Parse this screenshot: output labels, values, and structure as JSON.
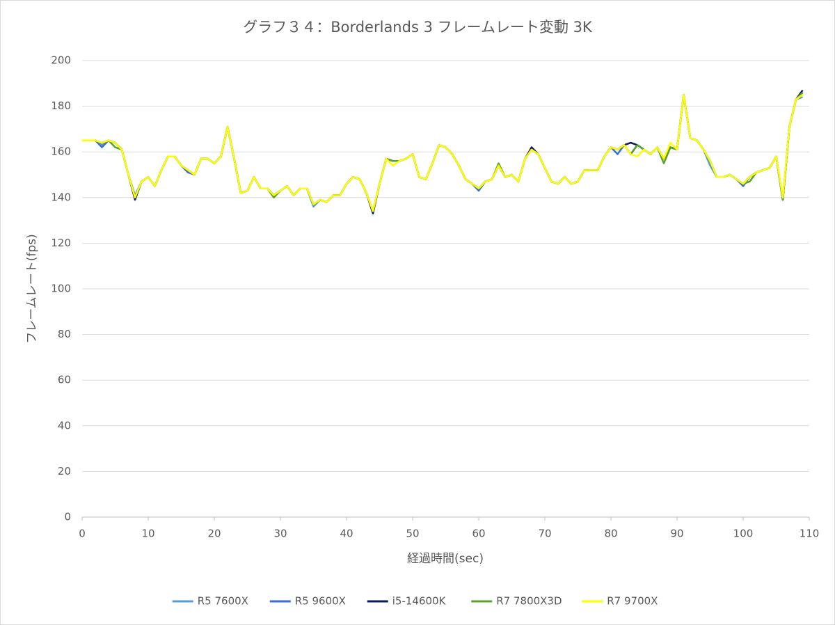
{
  "chart_data": {
    "type": "line",
    "title": "グラフ３４：Borderlands 3 フレームレート変動 3K",
    "x_label": "経過時間(sec)",
    "y_label": "フレームレート(fps)",
    "x": [
      0,
      1,
      2,
      3,
      4,
      5,
      6,
      7,
      8,
      9,
      10,
      11,
      12,
      13,
      14,
      15,
      16,
      17,
      18,
      19,
      20,
      21,
      22,
      23,
      24,
      25,
      26,
      27,
      28,
      29,
      30,
      31,
      32,
      33,
      34,
      35,
      36,
      37,
      38,
      39,
      40,
      41,
      42,
      43,
      44,
      45,
      46,
      47,
      48,
      49,
      50,
      51,
      52,
      53,
      54,
      55,
      56,
      57,
      58,
      59,
      60,
      61,
      62,
      63,
      64,
      65,
      66,
      67,
      68,
      69,
      70,
      71,
      72,
      73,
      74,
      75,
      76,
      77,
      78,
      79,
      80,
      81,
      82,
      83,
      84,
      85,
      86,
      87,
      88,
      89,
      90,
      91,
      92,
      93,
      94,
      95,
      96,
      97,
      98,
      99,
      100,
      101,
      102,
      103,
      104,
      105,
      106,
      107,
      108,
      109
    ],
    "xlim": [
      0,
      110
    ],
    "xticks": [
      0,
      10,
      20,
      30,
      40,
      50,
      60,
      70,
      80,
      90,
      100,
      110
    ],
    "ylim": [
      0,
      200
    ],
    "yticks": [
      0,
      20,
      40,
      60,
      80,
      100,
      120,
      140,
      160,
      180,
      200
    ],
    "grid": true,
    "legend": "bottom",
    "series": [
      {
        "name": "R5 7600X",
        "color": "#5b9bd5",
        "values": [
          165,
          165,
          165,
          163,
          165,
          164,
          161,
          150,
          141,
          147,
          149,
          145,
          152,
          158,
          158,
          154,
          152,
          150,
          157,
          157,
          155,
          158,
          171,
          157,
          142,
          143,
          149,
          144,
          144,
          141,
          143,
          145,
          141,
          144,
          144,
          136,
          139,
          138,
          141,
          141,
          146,
          149,
          148,
          142,
          134,
          146,
          157,
          156,
          156,
          157,
          159,
          149,
          148,
          155,
          163,
          162,
          159,
          154,
          148,
          146,
          144,
          147,
          148,
          154,
          149,
          150,
          147,
          157,
          161,
          159,
          153,
          147,
          146,
          149,
          146,
          147,
          152,
          152,
          152,
          158,
          162,
          161,
          163,
          159,
          163,
          161,
          159,
          162,
          157,
          162,
          161,
          185,
          166,
          165,
          161,
          154,
          149,
          149,
          150,
          148,
          146,
          149,
          151,
          152,
          153,
          158,
          139,
          171,
          183,
          184
        ]
      },
      {
        "name": "R5 9600X",
        "color": "#3a6fd0",
        "values": [
          165,
          165,
          165,
          162,
          165,
          164,
          161,
          150,
          140,
          147,
          149,
          145,
          152,
          158,
          158,
          154,
          151,
          150,
          157,
          157,
          155,
          158,
          171,
          157,
          142,
          143,
          149,
          144,
          144,
          141,
          143,
          145,
          141,
          144,
          144,
          137,
          139,
          138,
          141,
          141,
          146,
          149,
          148,
          142,
          134,
          146,
          157,
          156,
          156,
          157,
          159,
          149,
          148,
          155,
          163,
          162,
          159,
          154,
          148,
          146,
          143,
          147,
          148,
          154,
          149,
          150,
          147,
          157,
          161,
          159,
          153,
          147,
          146,
          149,
          146,
          147,
          152,
          152,
          152,
          158,
          162,
          159,
          163,
          159,
          163,
          161,
          159,
          162,
          157,
          162,
          161,
          185,
          166,
          165,
          161,
          156,
          149,
          149,
          150,
          148,
          145,
          149,
          151,
          152,
          153,
          158,
          139,
          171,
          183,
          186
        ]
      },
      {
        "name": "i5-14600K",
        "color": "#0a1a5c",
        "values": [
          165,
          165,
          165,
          164,
          165,
          164,
          161,
          150,
          139,
          147,
          149,
          145,
          152,
          158,
          158,
          154,
          152,
          150,
          157,
          157,
          155,
          158,
          171,
          157,
          142,
          143,
          149,
          144,
          144,
          141,
          143,
          145,
          141,
          144,
          144,
          137,
          139,
          138,
          141,
          141,
          146,
          149,
          148,
          142,
          133,
          146,
          157,
          156,
          156,
          157,
          159,
          149,
          148,
          155,
          163,
          162,
          159,
          154,
          148,
          146,
          144,
          147,
          148,
          154,
          149,
          150,
          147,
          157,
          162,
          159,
          153,
          147,
          146,
          149,
          146,
          147,
          152,
          152,
          152,
          158,
          162,
          161,
          163,
          164,
          163,
          161,
          159,
          162,
          157,
          162,
          161,
          185,
          166,
          165,
          161,
          156,
          149,
          149,
          150,
          148,
          146,
          149,
          151,
          152,
          153,
          158,
          139,
          171,
          183,
          187
        ]
      },
      {
        "name": "R7 7800X3D",
        "color": "#5aa02c",
        "values": [
          165,
          165,
          165,
          164,
          165,
          162,
          161,
          150,
          140,
          147,
          149,
          145,
          152,
          158,
          158,
          154,
          152,
          150,
          157,
          157,
          155,
          158,
          171,
          157,
          142,
          143,
          149,
          144,
          144,
          140,
          143,
          145,
          141,
          144,
          144,
          137,
          139,
          138,
          141,
          141,
          146,
          149,
          148,
          142,
          134,
          146,
          157,
          156,
          156,
          157,
          159,
          149,
          148,
          155,
          163,
          162,
          159,
          154,
          148,
          146,
          144,
          147,
          148,
          155,
          149,
          150,
          147,
          157,
          161,
          159,
          153,
          147,
          146,
          149,
          146,
          147,
          152,
          152,
          152,
          158,
          162,
          161,
          163,
          159,
          163,
          161,
          159,
          162,
          155,
          162,
          161,
          185,
          166,
          165,
          161,
          156,
          149,
          149,
          150,
          148,
          146,
          147,
          151,
          152,
          153,
          158,
          139,
          171,
          183,
          186
        ]
      },
      {
        "name": "R7 9700X",
        "color": "#ffff00",
        "values": [
          165,
          165,
          165,
          164,
          165,
          164,
          161,
          150,
          140,
          147,
          149,
          145,
          152,
          158,
          158,
          154,
          152,
          150,
          157,
          157,
          155,
          158,
          171,
          157,
          142,
          143,
          149,
          144,
          144,
          141,
          143,
          145,
          141,
          144,
          144,
          137,
          139,
          138,
          141,
          141,
          146,
          149,
          148,
          142,
          134,
          146,
          157,
          154,
          156,
          157,
          159,
          149,
          148,
          155,
          163,
          162,
          159,
          154,
          148,
          146,
          144,
          147,
          148,
          154,
          149,
          150,
          147,
          157,
          161,
          159,
          153,
          147,
          146,
          149,
          146,
          147,
          152,
          152,
          152,
          158,
          162,
          161,
          163,
          159,
          158,
          161,
          159,
          162,
          157,
          164,
          161,
          185,
          166,
          165,
          161,
          156,
          149,
          149,
          150,
          148,
          146,
          149,
          151,
          152,
          153,
          158,
          140,
          171,
          183,
          185
        ]
      }
    ]
  }
}
